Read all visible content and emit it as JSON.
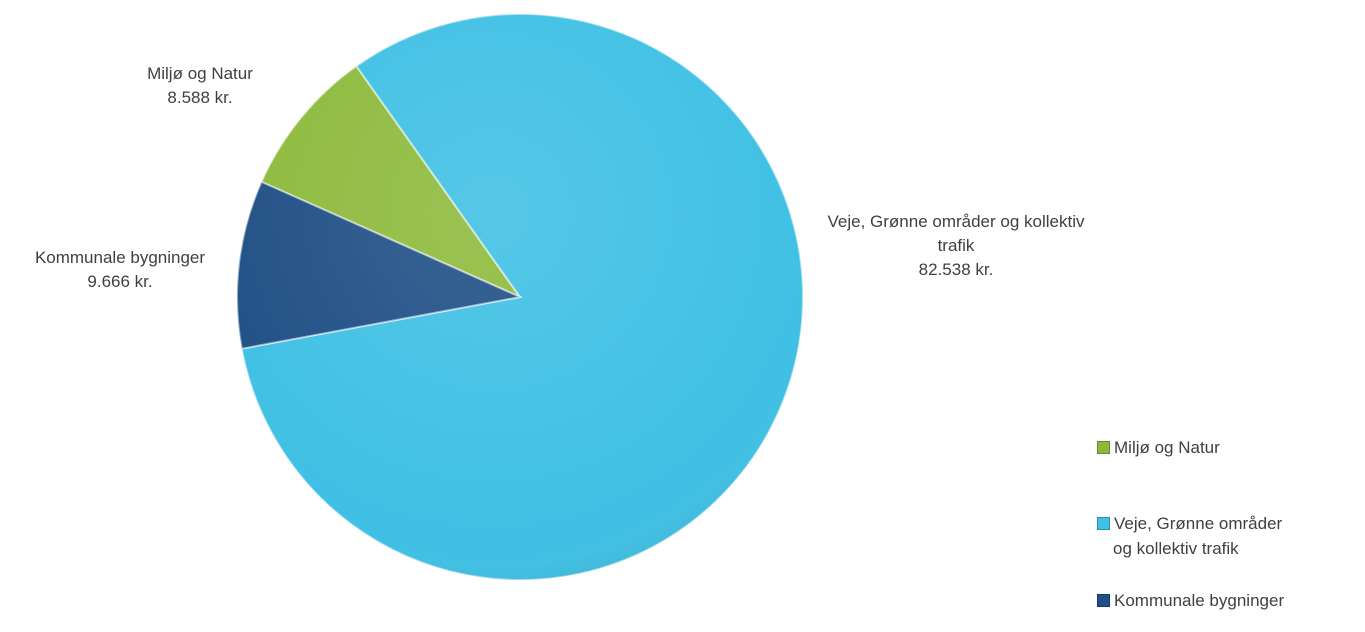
{
  "chart_data": {
    "type": "pie",
    "categories": [
      "Miljø og Natur",
      "Veje, Grønne områder og kollektiv trafik",
      "Kommunale bygninger"
    ],
    "values": [
      8588,
      82538,
      9666
    ],
    "value_labels": [
      "8.588 kr.",
      "82.538 kr.",
      "9.666 kr."
    ],
    "colors": [
      "#8dba3c",
      "#3fc0e4",
      "#1f4f86"
    ],
    "legend": "right"
  }
}
